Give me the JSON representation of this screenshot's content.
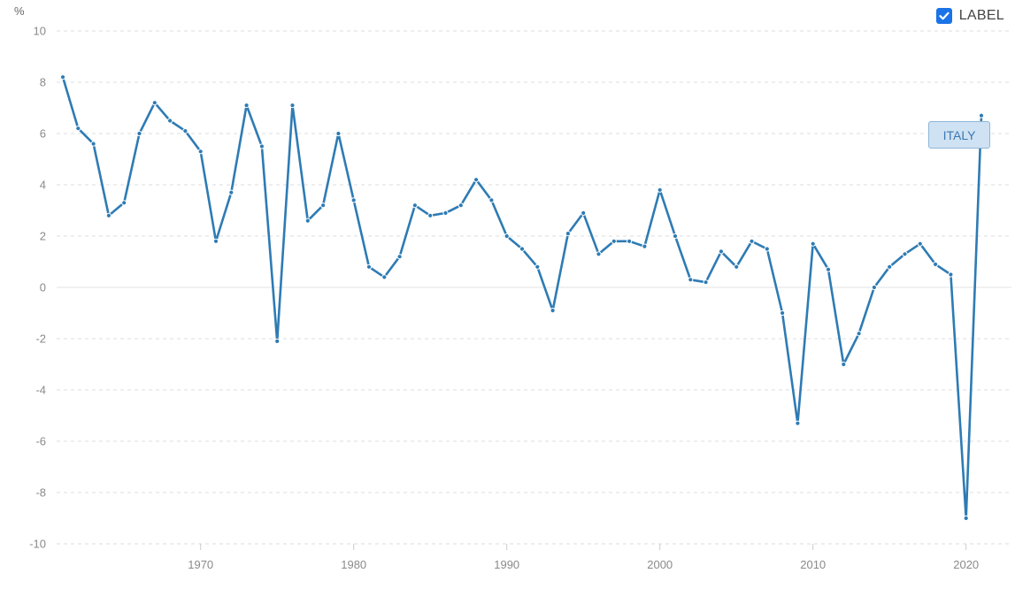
{
  "legend": {
    "label": "LABEL",
    "checked": true,
    "color": "#1a73e8"
  },
  "series_tag": "ITALY",
  "chart_data": {
    "type": "line",
    "unit_label": "%",
    "line_color": "#2e7bb4",
    "grid": true,
    "ylim": [
      -10,
      10
    ],
    "yticks": [
      10,
      8,
      6,
      4,
      2,
      0,
      -2,
      -4,
      -6,
      -8,
      -10
    ],
    "xticks": [
      1970,
      1980,
      1990,
      2000,
      2010,
      2020
    ],
    "series": [
      {
        "name": "ITALY",
        "x": [
          1961,
          1962,
          1963,
          1964,
          1965,
          1966,
          1967,
          1968,
          1969,
          1970,
          1971,
          1972,
          1973,
          1974,
          1975,
          1976,
          1977,
          1978,
          1979,
          1980,
          1981,
          1982,
          1983,
          1984,
          1985,
          1986,
          1987,
          1988,
          1989,
          1990,
          1991,
          1992,
          1993,
          1994,
          1995,
          1996,
          1997,
          1998,
          1999,
          2000,
          2001,
          2002,
          2003,
          2004,
          2005,
          2006,
          2007,
          2008,
          2009,
          2010,
          2011,
          2012,
          2013,
          2014,
          2015,
          2016,
          2017,
          2018,
          2019,
          2020,
          2021
        ],
        "values": [
          8.2,
          6.2,
          5.6,
          2.8,
          3.3,
          6.0,
          7.2,
          6.5,
          6.1,
          5.3,
          1.8,
          3.7,
          7.1,
          5.5,
          -2.1,
          7.1,
          2.6,
          3.2,
          6.0,
          3.4,
          0.8,
          0.4,
          1.2,
          3.2,
          2.8,
          2.9,
          3.2,
          4.2,
          3.4,
          2.0,
          1.5,
          0.8,
          -0.9,
          2.1,
          2.9,
          1.3,
          1.8,
          1.8,
          1.6,
          3.8,
          2.0,
          0.3,
          0.2,
          1.4,
          0.8,
          1.8,
          1.5,
          -1.0,
          -5.3,
          1.7,
          0.7,
          -3.0,
          -1.8,
          0.0,
          0.8,
          1.3,
          1.7,
          0.9,
          0.5,
          -9.0,
          6.7
        ]
      }
    ]
  }
}
